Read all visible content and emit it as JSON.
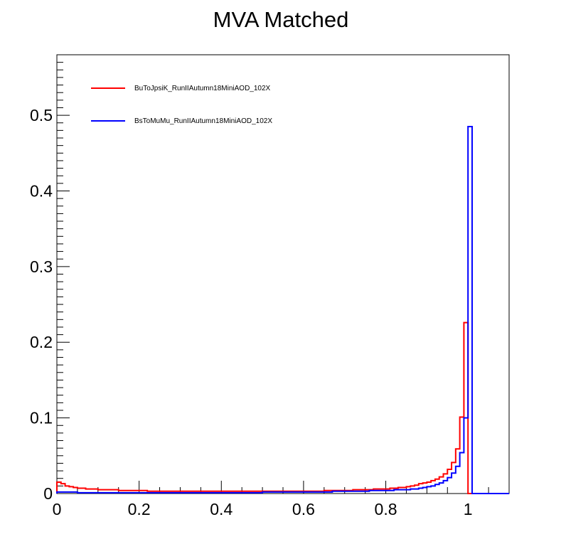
{
  "chart_data": {
    "type": "histogram",
    "title": "MVA Matched",
    "xlabel": "",
    "ylabel": "",
    "xlim": [
      0,
      1.1
    ],
    "ylim": [
      0,
      0.58
    ],
    "xticks": [
      0,
      0.2,
      0.4,
      0.6,
      0.8,
      1
    ],
    "xtick_labels": [
      "0",
      "0.2",
      "0.4",
      "0.6",
      "0.8",
      "1"
    ],
    "yticks": [
      0,
      0.1,
      0.2,
      0.3,
      0.4,
      0.5
    ],
    "ytick_labels": [
      "0",
      "0.1",
      "0.2",
      "0.3",
      "0.4",
      "0.5"
    ],
    "grid": false,
    "legend_position": "top-left",
    "bin_edges": [
      0,
      0.01,
      0.02,
      0.03,
      0.04,
      0.05,
      0.06,
      0.07,
      0.08,
      0.09,
      0.1,
      0.11,
      0.12,
      0.13,
      0.14,
      0.15,
      0.16,
      0.17,
      0.18,
      0.19,
      0.2,
      0.21,
      0.22,
      0.23,
      0.24,
      0.25,
      0.26,
      0.27,
      0.28,
      0.29,
      0.3,
      0.31,
      0.32,
      0.33,
      0.34,
      0.35,
      0.36,
      0.37,
      0.38,
      0.39,
      0.4,
      0.41,
      0.42,
      0.43,
      0.44,
      0.45,
      0.46,
      0.47,
      0.48,
      0.49,
      0.5,
      0.51,
      0.52,
      0.53,
      0.54,
      0.55,
      0.56,
      0.57,
      0.58,
      0.59,
      0.6,
      0.61,
      0.62,
      0.63,
      0.64,
      0.65,
      0.66,
      0.67,
      0.68,
      0.69,
      0.7,
      0.71,
      0.72,
      0.73,
      0.74,
      0.75,
      0.76,
      0.77,
      0.78,
      0.79,
      0.8,
      0.81,
      0.82,
      0.83,
      0.84,
      0.85,
      0.86,
      0.87,
      0.88,
      0.89,
      0.9,
      0.91,
      0.92,
      0.93,
      0.94,
      0.95,
      0.96,
      0.97,
      0.98,
      0.99,
      1.0,
      1.01,
      1.02,
      1.03,
      1.04,
      1.05,
      1.06,
      1.07,
      1.08,
      1.09,
      1.1
    ],
    "series": [
      {
        "name": "BuToJpsiK_RunIIAutumn18MiniAOD_102X",
        "color": "#ff0000",
        "values": [
          0.015,
          0.013,
          0.01,
          0.009,
          0.008,
          0.007,
          0.007,
          0.006,
          0.006,
          0.006,
          0.005,
          0.005,
          0.005,
          0.005,
          0.005,
          0.004,
          0.004,
          0.004,
          0.004,
          0.004,
          0.004,
          0.004,
          0.003,
          0.003,
          0.003,
          0.003,
          0.003,
          0.003,
          0.003,
          0.003,
          0.003,
          0.003,
          0.003,
          0.003,
          0.003,
          0.003,
          0.003,
          0.003,
          0.003,
          0.003,
          0.003,
          0.003,
          0.003,
          0.003,
          0.003,
          0.003,
          0.003,
          0.003,
          0.003,
          0.003,
          0.003,
          0.003,
          0.003,
          0.003,
          0.003,
          0.003,
          0.003,
          0.003,
          0.003,
          0.003,
          0.003,
          0.003,
          0.003,
          0.003,
          0.003,
          0.004,
          0.004,
          0.004,
          0.004,
          0.004,
          0.004,
          0.004,
          0.005,
          0.005,
          0.005,
          0.005,
          0.005,
          0.006,
          0.006,
          0.006,
          0.006,
          0.007,
          0.007,
          0.008,
          0.008,
          0.009,
          0.01,
          0.011,
          0.013,
          0.014,
          0.015,
          0.017,
          0.019,
          0.022,
          0.026,
          0.032,
          0.041,
          0.059,
          0.101,
          0.226,
          0.0,
          0.0,
          0.0,
          0.0,
          0.0,
          0.0,
          0.0,
          0.0,
          0.0,
          0.0
        ]
      },
      {
        "name": "BsToMuMu_RunIIAutumn18MiniAOD_102X",
        "color": "#0000ff",
        "values": [
          0.002,
          0.002,
          0.002,
          0.002,
          0.002,
          0.001,
          0.001,
          0.001,
          0.001,
          0.001,
          0.001,
          0.001,
          0.001,
          0.001,
          0.001,
          0.001,
          0.001,
          0.001,
          0.001,
          0.001,
          0.001,
          0.001,
          0.001,
          0.001,
          0.001,
          0.001,
          0.001,
          0.001,
          0.001,
          0.001,
          0.001,
          0.001,
          0.001,
          0.001,
          0.001,
          0.001,
          0.001,
          0.001,
          0.001,
          0.001,
          0.001,
          0.001,
          0.001,
          0.001,
          0.001,
          0.001,
          0.001,
          0.001,
          0.001,
          0.001,
          0.002,
          0.002,
          0.002,
          0.002,
          0.002,
          0.002,
          0.002,
          0.002,
          0.002,
          0.002,
          0.002,
          0.002,
          0.002,
          0.002,
          0.002,
          0.002,
          0.002,
          0.003,
          0.003,
          0.003,
          0.003,
          0.003,
          0.003,
          0.003,
          0.003,
          0.003,
          0.004,
          0.004,
          0.004,
          0.004,
          0.004,
          0.004,
          0.005,
          0.005,
          0.005,
          0.005,
          0.006,
          0.006,
          0.007,
          0.008,
          0.009,
          0.01,
          0.012,
          0.014,
          0.017,
          0.021,
          0.027,
          0.036,
          0.054,
          0.1,
          0.485,
          0.0,
          0.0,
          0.0,
          0.0,
          0.0,
          0.0,
          0.0,
          0.0,
          0.0,
          0.0
        ]
      }
    ]
  }
}
